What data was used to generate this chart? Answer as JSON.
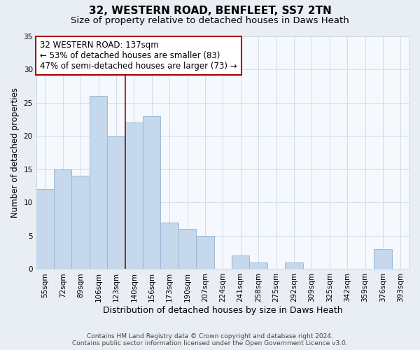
{
  "title": "32, WESTERN ROAD, BENFLEET, SS7 2TN",
  "subtitle": "Size of property relative to detached houses in Daws Heath",
  "xlabel": "Distribution of detached houses by size in Daws Heath",
  "ylabel": "Number of detached properties",
  "footer_line1": "Contains HM Land Registry data © Crown copyright and database right 2024.",
  "footer_line2": "Contains public sector information licensed under the Open Government Licence v3.0.",
  "bin_labels": [
    "55sqm",
    "72sqm",
    "89sqm",
    "106sqm",
    "123sqm",
    "140sqm",
    "156sqm",
    "173sqm",
    "190sqm",
    "207sqm",
    "224sqm",
    "241sqm",
    "258sqm",
    "275sqm",
    "292sqm",
    "309sqm",
    "325sqm",
    "342sqm",
    "359sqm",
    "376sqm",
    "393sqm"
  ],
  "bar_heights": [
    12,
    15,
    14,
    26,
    20,
    22,
    23,
    7,
    6,
    5,
    0,
    2,
    1,
    0,
    1,
    0,
    0,
    0,
    0,
    3,
    0
  ],
  "bar_color": "#c5d8ec",
  "bar_edgecolor": "#9ab8d8",
  "bar_linewidth": 0.7,
  "ref_line_color": "#aa0000",
  "annotation_text": "32 WESTERN ROAD: 137sqm\n← 53% of detached houses are smaller (83)\n47% of semi-detached houses are larger (73) →",
  "annotation_box_facecolor": "white",
  "annotation_box_edgecolor": "#aa0000",
  "annotation_fontsize": 8.5,
  "ylim": [
    0,
    35
  ],
  "yticks": [
    0,
    5,
    10,
    15,
    20,
    25,
    30,
    35
  ],
  "background_color": "#e8eef4",
  "plot_background_color": "#f5f8fc",
  "grid_color": "#c8d8e8",
  "title_fontsize": 11,
  "subtitle_fontsize": 9.5,
  "xlabel_fontsize": 9,
  "ylabel_fontsize": 8.5,
  "tick_fontsize": 7.5,
  "footer_fontsize": 6.5
}
